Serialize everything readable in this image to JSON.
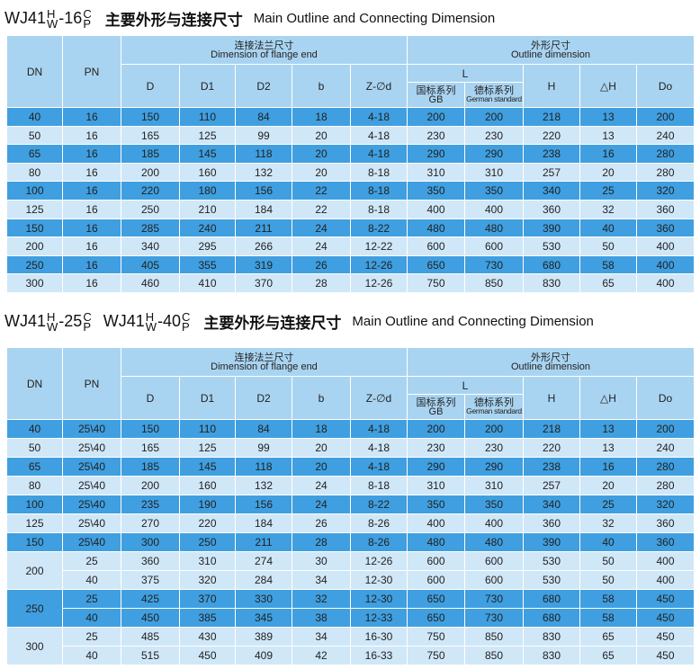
{
  "title1": {
    "model": "WJ41",
    "sup1": "H",
    "sub1": "W",
    "code": "-16",
    "sup2": "C",
    "sub2": "P",
    "cn": "主要外形与连接尺寸",
    "en": "Main Outline and Connecting Dimension"
  },
  "table1": {
    "header": {
      "dn": "DN",
      "pn": "PN",
      "flange_cn": "连接法兰尺寸",
      "flange_en": "Dimension of flange end",
      "outline_cn": "外形尺寸",
      "outline_en": "Outline dimension",
      "columns": [
        "D",
        "D1",
        "D2",
        "b",
        "Z-∅d"
      ],
      "l": "L",
      "gb_cn": "国标系列",
      "gb": "GB",
      "de_cn": "德标系列",
      "de": "German standard",
      "outline_columns": [
        "H",
        "△H",
        "Do"
      ]
    },
    "rows": [
      [
        40,
        16,
        150,
        110,
        84,
        18,
        "4-18",
        200,
        200,
        218,
        13,
        200
      ],
      [
        50,
        16,
        165,
        125,
        99,
        20,
        "4-18",
        230,
        230,
        220,
        13,
        240
      ],
      [
        65,
        16,
        185,
        145,
        118,
        20,
        "4-18",
        290,
        290,
        238,
        16,
        280
      ],
      [
        80,
        16,
        200,
        160,
        132,
        20,
        "8-18",
        310,
        310,
        257,
        20,
        280
      ],
      [
        100,
        16,
        220,
        180,
        156,
        22,
        "8-18",
        350,
        350,
        340,
        25,
        320
      ],
      [
        125,
        16,
        250,
        210,
        184,
        22,
        "8-18",
        400,
        400,
        360,
        32,
        360
      ],
      [
        150,
        16,
        285,
        240,
        211,
        24,
        "8-22",
        480,
        480,
        390,
        40,
        360
      ],
      [
        200,
        16,
        340,
        295,
        266,
        24,
        "12-22",
        600,
        600,
        530,
        50,
        400
      ],
      [
        250,
        16,
        405,
        355,
        319,
        26,
        "12-26",
        650,
        730,
        680,
        58,
        400
      ],
      [
        300,
        16,
        460,
        410,
        370,
        28,
        "12-26",
        750,
        850,
        830,
        65,
        400
      ]
    ]
  },
  "title2": {
    "models": [
      {
        "model": "WJ41",
        "sup1": "H",
        "sub1": "W",
        "code": "-25",
        "sup2": "C",
        "sub2": "P"
      },
      {
        "model": "WJ41",
        "sup1": "H",
        "sub1": "W",
        "code": "-40",
        "sup2": "C",
        "sub2": "P"
      }
    ],
    "cn": "主要外形与连接尺寸",
    "en": "Main Outline and Connecting Dimension"
  },
  "table2": {
    "header": {
      "dn": "DN",
      "pn": "PN",
      "flange_cn": "连接法兰尺寸",
      "flange_en": "Dimension of flange end",
      "outline_cn": "外形尺寸",
      "outline_en": "Outline dimension",
      "columns": [
        "D",
        "D1",
        "D2",
        "b",
        "Z-∅d"
      ],
      "l": "L",
      "gb_cn": "国标系列",
      "gb": "GB",
      "de_cn": "德标系列",
      "de": "German standard",
      "outline_columns": [
        "H",
        "△H",
        "Do"
      ]
    },
    "rows": [
      [
        40,
        "25\\40",
        150,
        110,
        84,
        18,
        "4-18",
        200,
        200,
        218,
        13,
        200
      ],
      [
        50,
        "25\\40",
        165,
        125,
        99,
        20,
        "4-18",
        230,
        230,
        220,
        13,
        240
      ],
      [
        65,
        "25\\40",
        185,
        145,
        118,
        20,
        "4-18",
        290,
        290,
        238,
        16,
        280
      ],
      [
        80,
        "25\\40",
        200,
        160,
        132,
        24,
        "8-18",
        310,
        310,
        257,
        20,
        280
      ],
      [
        100,
        "25\\40",
        235,
        190,
        156,
        24,
        "8-22",
        350,
        350,
        340,
        25,
        320
      ],
      [
        125,
        "25\\40",
        270,
        220,
        184,
        26,
        "8-26",
        400,
        400,
        360,
        32,
        360
      ],
      [
        150,
        "25\\40",
        300,
        250,
        211,
        28,
        "8-26",
        480,
        480,
        390,
        40,
        360
      ]
    ],
    "groups": [
      {
        "dn": 200,
        "rows": [
          [
            25,
            360,
            310,
            274,
            30,
            "12-26",
            600,
            600,
            530,
            50,
            400
          ],
          [
            40,
            375,
            320,
            284,
            34,
            "12-30",
            600,
            600,
            530,
            50,
            400
          ]
        ]
      },
      {
        "dn": 250,
        "rows": [
          [
            25,
            425,
            370,
            330,
            32,
            "12-30",
            650,
            730,
            680,
            58,
            450
          ],
          [
            40,
            450,
            385,
            345,
            38,
            "12-33",
            650,
            730,
            680,
            58,
            450
          ]
        ]
      },
      {
        "dn": 300,
        "rows": [
          [
            25,
            485,
            430,
            389,
            34,
            "16-30",
            750,
            850,
            830,
            65,
            450
          ],
          [
            40,
            515,
            450,
            409,
            42,
            "16-33",
            750,
            850,
            830,
            65,
            450
          ]
        ]
      }
    ]
  }
}
